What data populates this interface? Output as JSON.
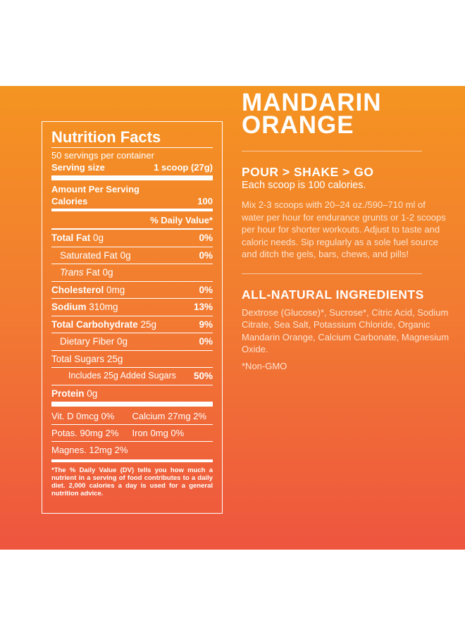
{
  "nutrition": {
    "title": "Nutrition Facts",
    "servings": "50 servings per container",
    "serving_size_label": "Serving size",
    "serving_size_value": "1 scoop (27g)",
    "amount_per_serving": "Amount Per Serving",
    "calories_label": "Calories",
    "calories_value": "100",
    "dv_header": "% Daily Value*",
    "rows": [
      {
        "label": "Total Fat",
        "amount": "0g",
        "dv": "0%"
      },
      {
        "label": "Saturated Fat",
        "amount": "0g",
        "dv": "0%"
      },
      {
        "label_italic": "Trans",
        "label_rest": " Fat",
        "amount": "0g",
        "dv": ""
      },
      {
        "label": "Cholesterol",
        "amount": "0mg",
        "dv": "0%"
      },
      {
        "label": "Sodium",
        "amount": "310mg",
        "dv": "13%"
      },
      {
        "label": "Total Carbohydrate",
        "amount": "25g",
        "dv": "9%"
      },
      {
        "label": "Dietary Fiber",
        "amount": "0g",
        "dv": "0%"
      },
      {
        "label": "Total Sugars",
        "amount": "25g",
        "dv": ""
      },
      {
        "label": "Includes 25g Added Sugars",
        "amount": "",
        "dv": "50%"
      },
      {
        "label": "Protein",
        "amount": "0g",
        "dv": ""
      }
    ],
    "vitamins": [
      [
        "Vit. D 0mcg 0%",
        "Calcium 27mg 2%"
      ],
      [
        "Potas. 90mg 2%",
        "Iron 0mg 0%"
      ],
      [
        "Magnes. 12mg 2%"
      ]
    ],
    "footnote": "*The % Daily Value (DV) tells you how much a nutrient in a serving of food contributes to a daily diet. 2,000 calories a day is used for a general nutrition advice."
  },
  "product": {
    "name_line1": "MANDARIN",
    "name_line2": "ORANGE",
    "directions_title": "POUR > SHAKE > GO",
    "calories_note": "Each scoop is 100 calories.",
    "directions_text": "Mix 2-3 scoops with 20–24 oz./590–710 ml of water per hour for endurance grunts or 1-2 scoops per hour for shorter workouts. Adjust to taste and caloric needs. Sip regularly as a sole fuel source and ditch the gels, bars, chews, and pills!",
    "ingredients_title": "ALL-NATURAL INGREDIENTS",
    "ingredients_text": "Dextrose (Glucose)*, Sucrose*, Citric Acid, Sodium Citrate, Sea Salt, Potassium Chloride, Organic Mandarin Orange, Calcium Carbonate, Magnesium Oxide.",
    "non_gmo": "*Non-GMO"
  },
  "colors": {
    "gradient_top": "#f49421",
    "gradient_bottom": "#ee553f",
    "text": "#ffffff"
  }
}
